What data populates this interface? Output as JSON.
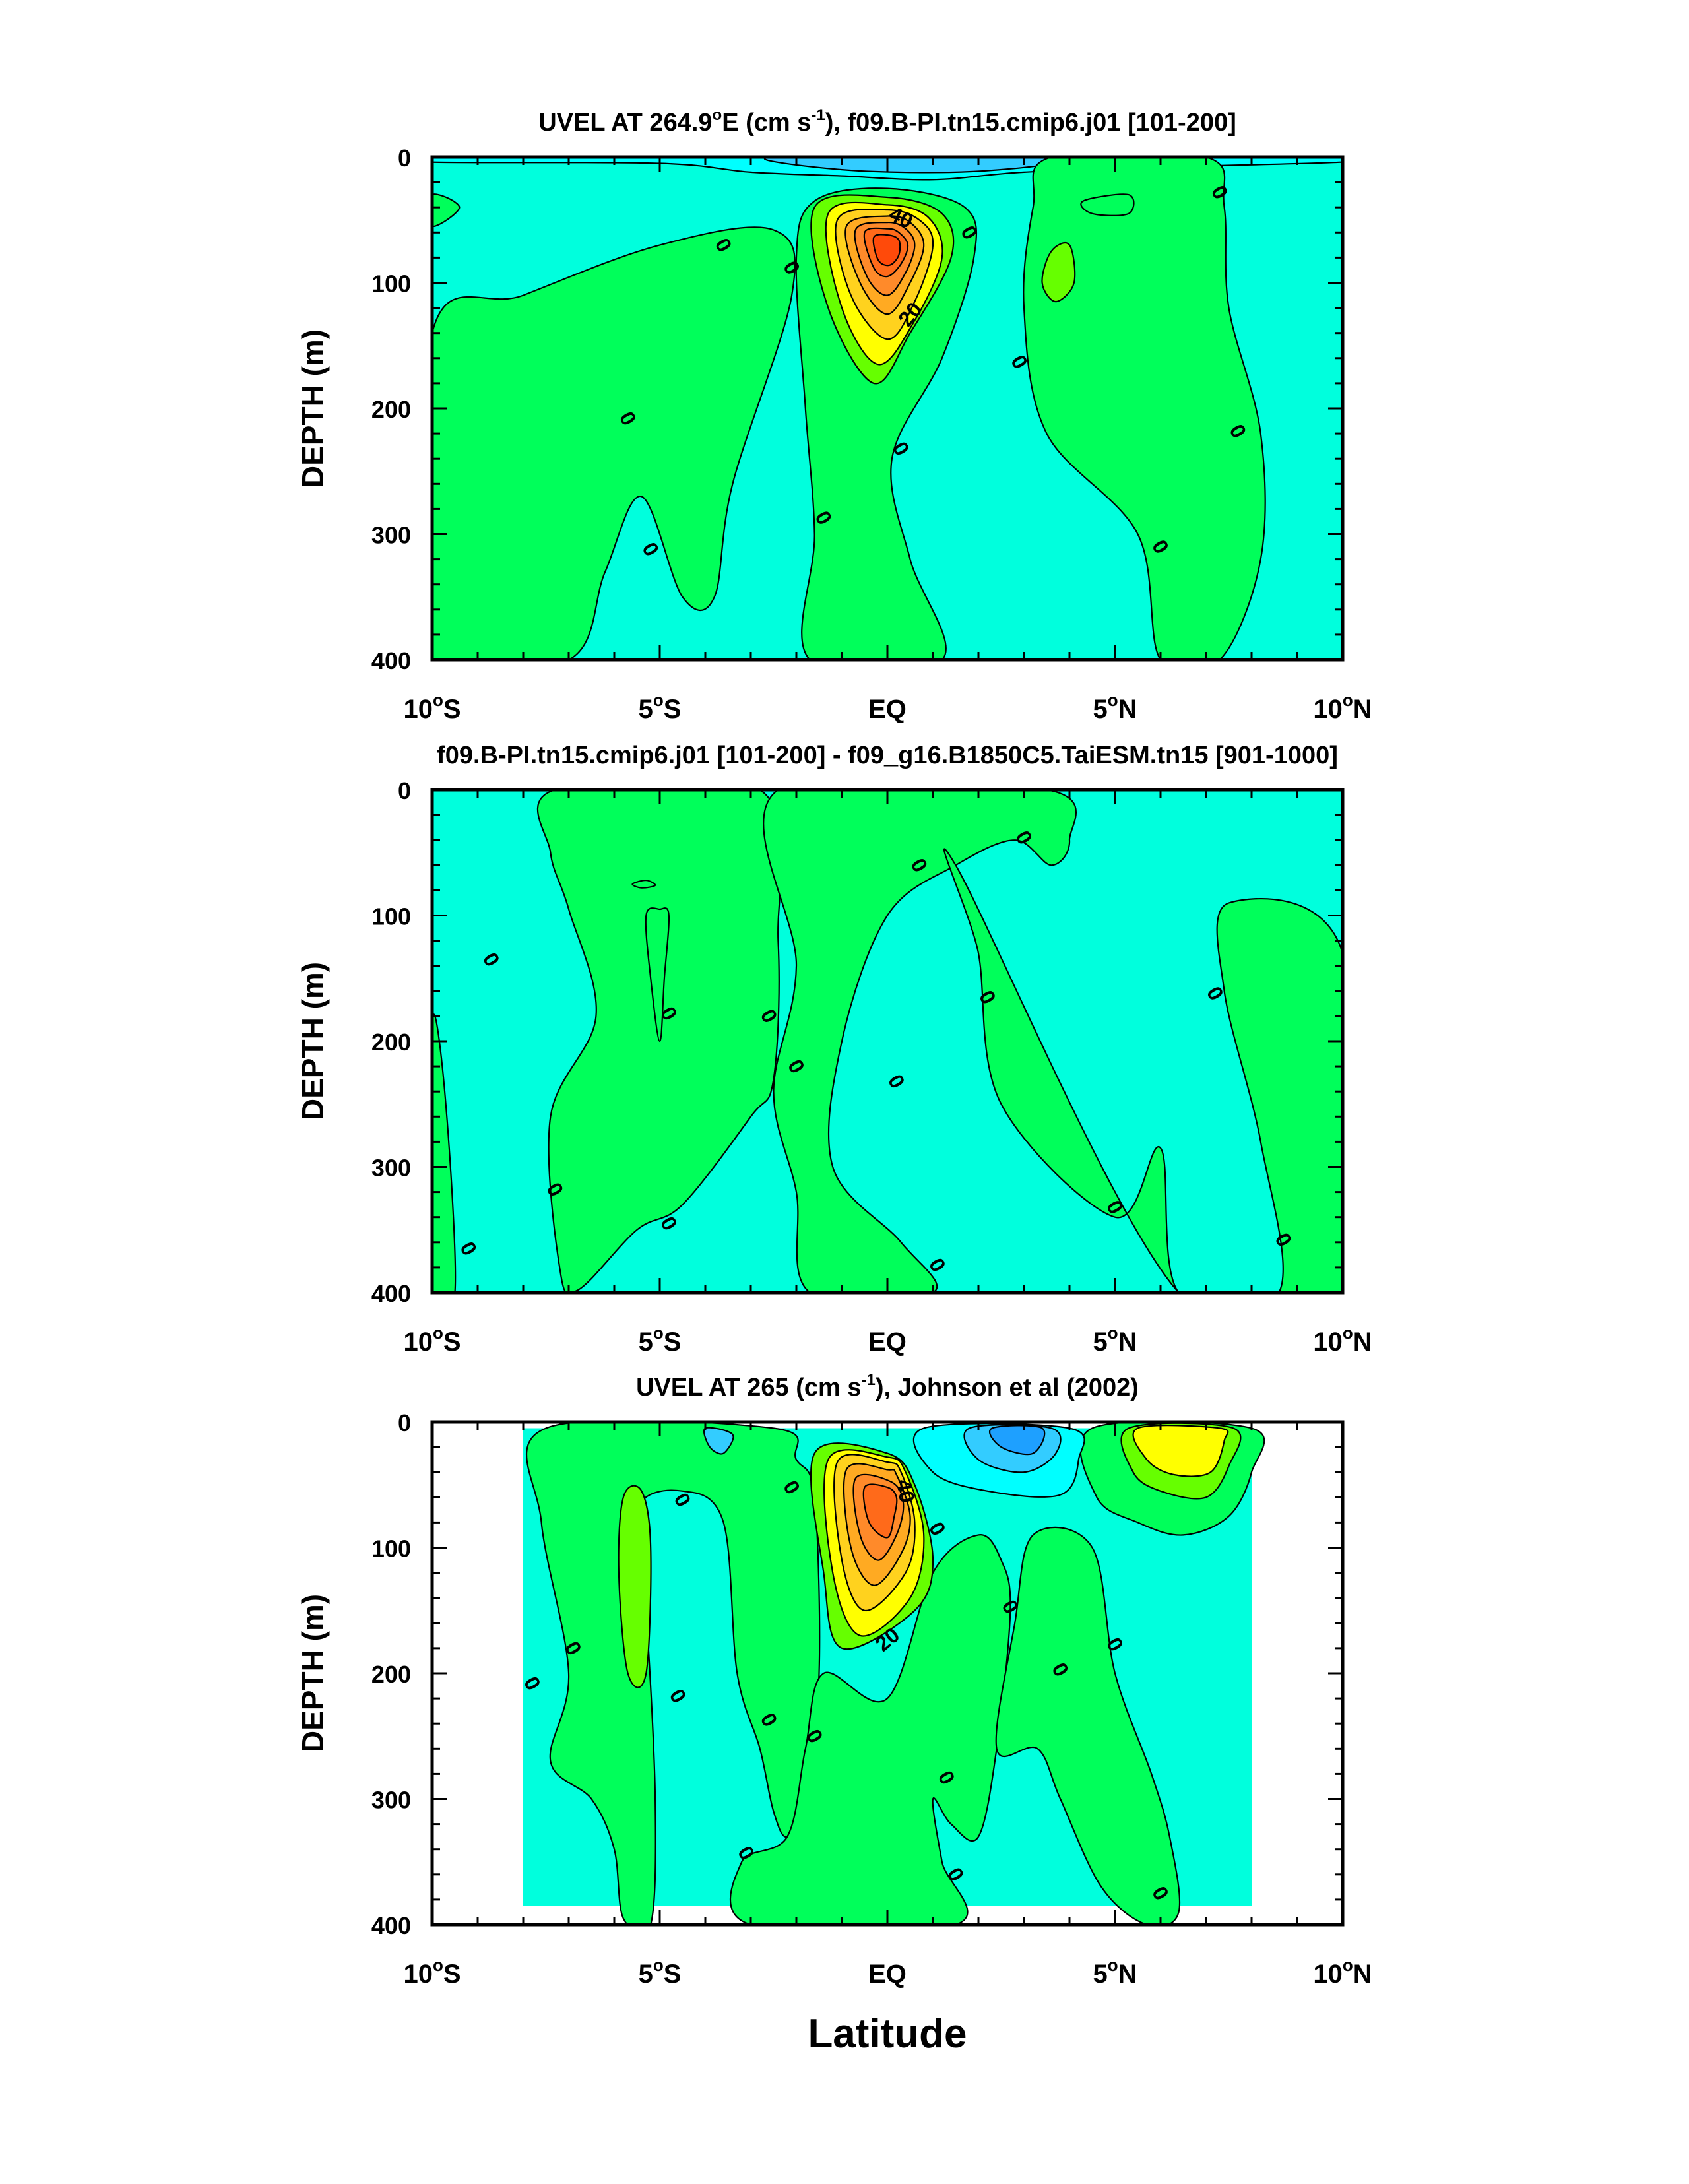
{
  "figure": {
    "xlabel": "Latitude"
  },
  "panels": [
    {
      "title_pre": "UVEL AT 264.9",
      "title_deg": "o",
      "title_mid": "E (cm s",
      "title_sup": "-1",
      "title_post": "), f09.B-PI.tn15.cmip6.j01 [101-200]"
    },
    {
      "title_pre": "f09.B-PI.tn15.cmip6.j01 [101-200] - f09_g16.B1850C5.TaiESM.tn15 [901-1000]",
      "title_deg": "",
      "title_mid": "",
      "title_sup": "",
      "title_post": ""
    },
    {
      "title_pre": "UVEL AT 265 (cm s",
      "title_deg": "",
      "title_mid": "",
      "title_sup": "-1",
      "title_post": "), Johnson et al (2002)"
    }
  ],
  "chart_data": [
    {
      "type": "contour",
      "title": "UVEL AT 264.9°E (cm s-1), f09.B-PI.tn15.cmip6.j01 [101-200]",
      "xlabel": "Latitude",
      "ylabel": "DEPTH (m)",
      "xlim": [
        -10,
        10
      ],
      "ylim": [
        400,
        0
      ],
      "x_ticks": [
        "10°S",
        "5°S",
        "EQ",
        "5°N",
        "10°N"
      ],
      "y_ticks": [
        "0",
        "100",
        "200",
        "300",
        "400"
      ],
      "contour_labels": [
        "0",
        "0",
        "0",
        "0",
        "0",
        "0",
        "0",
        "0",
        "0",
        "0",
        "0",
        "0",
        "20",
        "40"
      ],
      "core": {
        "lat": 0,
        "depth": 75,
        "approx_max": 60
      }
    },
    {
      "type": "contour",
      "title": "f09.B-PI.tn15.cmip6.j01 [101-200] - f09_g16.B1850C5.TaiESM.tn15 [901-1000]",
      "xlabel": "Latitude",
      "ylabel": "DEPTH (m)",
      "xlim": [
        -10,
        10
      ],
      "ylim": [
        400,
        0
      ],
      "x_ticks": [
        "10°S",
        "5°S",
        "EQ",
        "5°N",
        "10°N"
      ],
      "y_ticks": [
        "0",
        "100",
        "200",
        "300",
        "400"
      ],
      "contour_labels": [
        "0",
        "0",
        "0",
        "0",
        "0",
        "0",
        "0",
        "0",
        "0",
        "0",
        "0",
        "0",
        "0",
        "0",
        "0"
      ]
    },
    {
      "type": "contour",
      "title": "UVEL AT 265 (cm s-1), Johnson et al (2002)",
      "xlabel": "Latitude",
      "ylabel": "DEPTH (m)",
      "xlim": [
        -10,
        10
      ],
      "ylim": [
        400,
        0
      ],
      "x_ticks": [
        "10°S",
        "5°S",
        "EQ",
        "5°N",
        "10°N"
      ],
      "y_ticks": [
        "0",
        "100",
        "200",
        "300",
        "400"
      ],
      "contour_labels": [
        "0",
        "0",
        "0",
        "0",
        "0",
        "0",
        "0",
        "0",
        "0",
        "0",
        "0",
        "0",
        "0",
        "0",
        "0",
        "20",
        "40"
      ],
      "data_extent_lat": [
        -8,
        8
      ],
      "core": {
        "lat": 0,
        "depth": 70,
        "approx_max": 60
      }
    }
  ],
  "colors": {
    "neg_light": "#00ffdd",
    "neg_mid": "#00ffff",
    "neg_strong": "#33ccff",
    "neg_max": "#1ea0ff",
    "pos_low": "#00ff5a",
    "pos_2": "#66ff00",
    "pos_3": "#ffff00",
    "pos_4": "#ffd21e",
    "pos_5": "#ffaa22",
    "pos_6": "#ff8a2a",
    "pos_7": "#ff6a1a",
    "pos_max": "#ff4a0a"
  }
}
